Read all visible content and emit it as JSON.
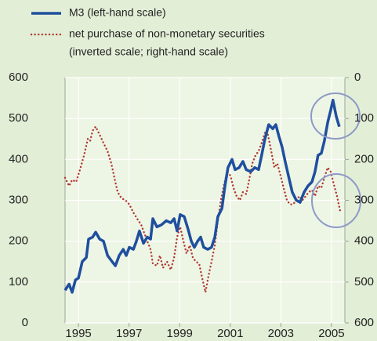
{
  "chart_data": {
    "type": "line",
    "xlim": [
      1994.47,
      2005.53
    ],
    "xticks": [
      1995,
      1997,
      1999,
      2001,
      2003,
      2005
    ],
    "ylim": [
      0,
      600
    ],
    "yticks": [
      0,
      100,
      200,
      300,
      400,
      500,
      600
    ],
    "y2lim": [
      0,
      600
    ],
    "y2ticks": [
      0,
      100,
      200,
      300,
      400,
      500,
      600
    ],
    "y2_inverted": true,
    "grid": true,
    "legend": "top-left",
    "legend_subtext": "(inverted scale; right-hand scale)",
    "series": [
      {
        "name": "M3 (left-hand scale)",
        "color": "#1f4f9e",
        "style": "solid",
        "x": [
          1994.47,
          1994.63,
          1994.75,
          1994.88,
          1995.0,
          1995.15,
          1995.31,
          1995.4,
          1995.56,
          1995.68,
          1995.84,
          1995.99,
          1996.15,
          1996.33,
          1996.46,
          1996.61,
          1996.77,
          1996.89,
          1997.01,
          1997.17,
          1997.29,
          1997.41,
          1997.57,
          1997.72,
          1997.85,
          1997.94,
          1998.1,
          1998.28,
          1998.47,
          1998.65,
          1998.78,
          1998.9,
          1999.02,
          1999.18,
          1999.33,
          1999.46,
          1999.58,
          1999.71,
          1999.83,
          1999.95,
          2000.11,
          2000.26,
          2000.39,
          2000.51,
          2000.67,
          2000.79,
          2000.91,
          2001.07,
          2001.19,
          2001.35,
          2001.5,
          2001.63,
          2001.81,
          2001.97,
          2002.12,
          2002.24,
          2002.37,
          2002.52,
          2002.68,
          2002.8,
          2002.93,
          2003.05,
          2003.17,
          2003.3,
          2003.45,
          2003.61,
          2003.76,
          2003.92,
          2004.07,
          2004.23,
          2004.35,
          2004.47,
          2004.6,
          2004.72,
          2004.85,
          2004.97,
          2005.06,
          2005.19,
          2005.31
        ],
        "values": [
          80,
          95,
          75,
          105,
          110,
          150,
          160,
          205,
          210,
          222,
          205,
          200,
          165,
          150,
          140,
          165,
          180,
          165,
          185,
          180,
          200,
          225,
          195,
          210,
          205,
          255,
          235,
          240,
          250,
          245,
          255,
          225,
          265,
          260,
          230,
          200,
          185,
          200,
          210,
          185,
          180,
          185,
          210,
          260,
          280,
          335,
          380,
          400,
          375,
          380,
          395,
          375,
          370,
          380,
          375,
          410,
          450,
          485,
          475,
          485,
          455,
          430,
          395,
          360,
          320,
          300,
          295,
          320,
          335,
          345,
          370,
          410,
          415,
          445,
          490,
          520,
          545,
          505,
          480
        ]
      },
      {
        "name": "net purchase of non-monetary securities",
        "color": "#b0392e",
        "style": "dotted",
        "axis": "y2",
        "x": [
          1994.47,
          1994.63,
          1994.75,
          1994.91,
          1995.06,
          1995.22,
          1995.37,
          1995.46,
          1995.56,
          1995.68,
          1995.84,
          1995.99,
          1996.15,
          1996.3,
          1996.42,
          1996.55,
          1996.7,
          1996.86,
          1997.01,
          1997.17,
          1997.32,
          1997.48,
          1997.6,
          1997.72,
          1997.85,
          1997.94,
          1998.1,
          1998.22,
          1998.34,
          1998.5,
          1998.65,
          1998.78,
          1998.9,
          1999.02,
          1999.15,
          1999.27,
          1999.4,
          1999.52,
          1999.64,
          1999.77,
          1999.89,
          2000.02,
          2000.14,
          2000.26,
          2000.39,
          2000.51,
          2000.63,
          2000.76,
          2000.88,
          2001.01,
          2001.13,
          2001.25,
          2001.38,
          2001.5,
          2001.63,
          2001.75,
          2001.87,
          2002.0,
          2002.12,
          2002.24,
          2002.37,
          2002.49,
          2002.62,
          2002.74,
          2002.86,
          2002.99,
          2003.11,
          2003.24,
          2003.36,
          2003.48,
          2003.61,
          2003.73,
          2003.85,
          2003.98,
          2004.1,
          2004.23,
          2004.35,
          2004.47,
          2004.6,
          2004.72,
          2004.85,
          2004.97,
          2005.09,
          2005.22,
          2005.34
        ],
        "values": [
          245,
          265,
          250,
          255,
          225,
          190,
          150,
          155,
          130,
          120,
          140,
          160,
          180,
          210,
          245,
          280,
          295,
          300,
          310,
          330,
          345,
          360,
          380,
          400,
          420,
          455,
          460,
          435,
          465,
          450,
          470,
          440,
          390,
          365,
          400,
          430,
          410,
          440,
          450,
          455,
          490,
          525,
          485,
          450,
          410,
          350,
          300,
          260,
          230,
          240,
          270,
          290,
          300,
          280,
          285,
          250,
          210,
          190,
          180,
          160,
          135,
          140,
          180,
          220,
          210,
          240,
          270,
          300,
          310,
          310,
          300,
          290,
          300,
          290,
          280,
          275,
          290,
          265,
          270,
          245,
          220,
          230,
          260,
          290,
          325
        ]
      }
    ]
  }
}
